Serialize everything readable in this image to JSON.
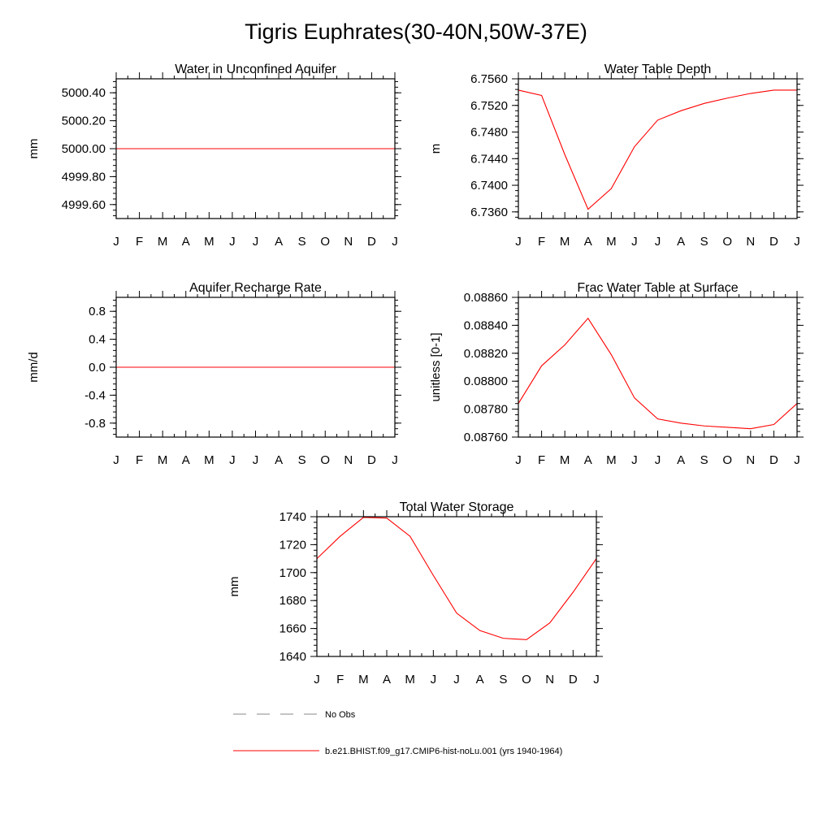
{
  "page_title": "Tigris Euphrates(30-40N,50W-37E)",
  "colors": {
    "series": "#ff0000",
    "obs": "#888888",
    "axis": "#000000"
  },
  "legend": {
    "obs_label": "No Obs",
    "model_label": "b.e21.BHIST.f09_g17.CMIP6-hist-noLu.001 (yrs 1940-1964)"
  },
  "chart_data": [
    {
      "type": "line",
      "title": "Water in Unconfined Aquifer",
      "ylabel": "mm",
      "x": [
        "J",
        "F",
        "M",
        "A",
        "M",
        "J",
        "J",
        "A",
        "S",
        "O",
        "N",
        "D",
        "J"
      ],
      "ylim": [
        4999.5,
        5000.5
      ],
      "yticks": [
        4999.6,
        4999.8,
        5000.0,
        5000.2,
        5000.4
      ],
      "ytick_labels": [
        "4999.60",
        "4999.80",
        "5000.00",
        "5000.20",
        "5000.40"
      ],
      "series": [
        {
          "values": [
            5000,
            5000,
            5000,
            5000,
            5000,
            5000,
            5000,
            5000,
            5000,
            5000,
            5000,
            5000,
            5000
          ]
        }
      ]
    },
    {
      "type": "line",
      "title": "Water Table Depth",
      "ylabel": "m",
      "x": [
        "J",
        "F",
        "M",
        "A",
        "M",
        "J",
        "J",
        "A",
        "S",
        "O",
        "N",
        "D",
        "J"
      ],
      "ylim": [
        6.735,
        6.756
      ],
      "yticks": [
        6.736,
        6.74,
        6.744,
        6.748,
        6.752,
        6.756
      ],
      "ytick_labels": [
        "6.7360",
        "6.7400",
        "6.7440",
        "6.7480",
        "6.7520",
        "6.7560"
      ],
      "series": [
        {
          "values": [
            6.7543,
            6.7535,
            6.7446,
            6.7364,
            6.7395,
            6.7458,
            6.7498,
            6.7512,
            6.7523,
            6.7531,
            6.7538,
            6.7543,
            6.7543
          ]
        }
      ]
    },
    {
      "type": "line",
      "title": "Aquifer Recharge Rate",
      "ylabel": "mm/d",
      "x": [
        "J",
        "F",
        "M",
        "A",
        "M",
        "J",
        "J",
        "A",
        "S",
        "O",
        "N",
        "D",
        "J"
      ],
      "ylim": [
        -1.0,
        1.0
      ],
      "yticks": [
        -0.8,
        -0.4,
        0.0,
        0.4,
        0.8
      ],
      "ytick_labels": [
        "-0.8",
        "-0.4",
        "0.0",
        "0.4",
        "0.8"
      ],
      "series": [
        {
          "values": [
            0,
            0,
            0,
            0,
            0,
            0,
            0,
            0,
            0,
            0,
            0,
            0,
            0
          ]
        }
      ]
    },
    {
      "type": "line",
      "title": "Frac Water Table at Surface",
      "ylabel": "unitless [0-1]",
      "x": [
        "J",
        "F",
        "M",
        "A",
        "M",
        "J",
        "J",
        "A",
        "S",
        "O",
        "N",
        "D",
        "J"
      ],
      "ylim": [
        0.0876,
        0.0886
      ],
      "yticks": [
        0.0876,
        0.0878,
        0.088,
        0.0882,
        0.0884,
        0.0886
      ],
      "ytick_labels": [
        "0.08760",
        "0.08780",
        "0.08800",
        "0.08820",
        "0.08840",
        "0.08860"
      ],
      "series": [
        {
          "values": [
            0.08784,
            0.08811,
            0.08826,
            0.08845,
            0.08819,
            0.08788,
            0.08773,
            0.0877,
            0.08768,
            0.08767,
            0.08766,
            0.08769,
            0.08784
          ]
        }
      ]
    },
    {
      "type": "line",
      "title": "Total Water Storage",
      "ylabel": "mm",
      "x": [
        "J",
        "F",
        "M",
        "A",
        "M",
        "J",
        "J",
        "A",
        "S",
        "O",
        "N",
        "D",
        "J"
      ],
      "ylim": [
        1640,
        1740
      ],
      "yticks": [
        1640,
        1660,
        1680,
        1700,
        1720,
        1740
      ],
      "ytick_labels": [
        "1640",
        "1660",
        "1680",
        "1700",
        "1720",
        "1740"
      ],
      "series": [
        {
          "values": [
            1710,
            1726,
            1739.5,
            1739,
            1726,
            1698,
            1671,
            1658.5,
            1653,
            1652,
            1664,
            1686,
            1710
          ]
        }
      ]
    }
  ]
}
